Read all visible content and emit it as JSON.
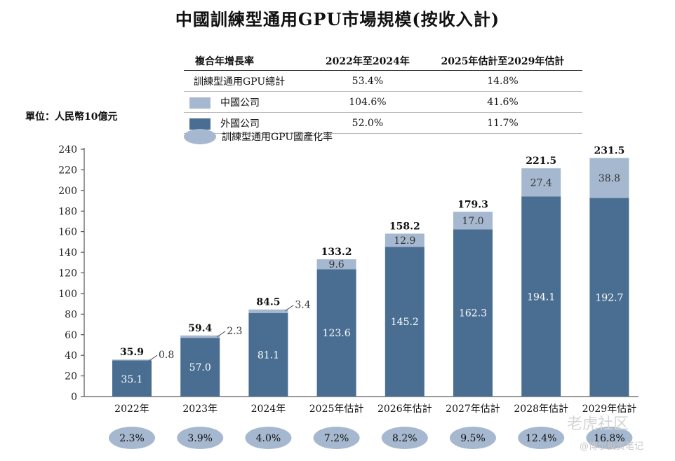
{
  "title": "中國訓練型通用GPU市場規模(按收入計)",
  "unit_label": "單位：人民幣10億元",
  "cagr_table": {
    "header": [
      "複合年增長率",
      "2022年至2024年",
      "2025年估計至2029年估計"
    ],
    "rows": [
      {
        "label": "訓練型通用GPU總計",
        "v1": "53.4%",
        "v2": "14.8%"
      },
      {
        "label": "中國公司",
        "v1": "104.6%",
        "v2": "41.6%"
      },
      {
        "label": "外國公司",
        "v1": "52.0%",
        "v2": "11.7%"
      }
    ]
  },
  "penetration_legend": "訓練型通用GPU國產化率",
  "colors": {
    "domestic": "#a6b8cf",
    "foreign": "#4a6e92",
    "ellipse": "#a6b8cf"
  },
  "watermark": {
    "line1": "老虎社区",
    "line2": "@博尔投资笔记"
  },
  "chart_data": {
    "type": "bar",
    "stacked": true,
    "categories": [
      "2022年",
      "2023年",
      "2024年",
      "2025年估計",
      "2026年估計",
      "2027年估計",
      "2028年估計",
      "2029年估計"
    ],
    "series": [
      {
        "name": "外國公司",
        "values": [
          35.1,
          57.0,
          81.1,
          123.6,
          145.2,
          162.3,
          194.1,
          192.7
        ]
      },
      {
        "name": "中國公司",
        "values": [
          0.8,
          2.3,
          3.4,
          9.6,
          12.9,
          17.0,
          27.4,
          38.8
        ]
      }
    ],
    "totals": [
      "35.9",
      "59.4",
      "84.5",
      "133.2",
      "158.2",
      "179.3",
      "221.5",
      "231.5"
    ],
    "foreign_labels": [
      "35.1",
      "57.0",
      "81.1",
      "123.6",
      "145.2",
      "162.3",
      "194.1",
      "192.7"
    ],
    "domestic_labels": [
      "0.8",
      "2.3",
      "3.4",
      "9.6",
      "12.9",
      "17.0",
      "27.4",
      "38.8"
    ],
    "penetration_rates": [
      "2.3%",
      "3.9%",
      "4.0%",
      "7.2%",
      "8.2%",
      "9.5%",
      "12.4%",
      "16.8%"
    ],
    "yticks": [
      "0",
      "20",
      "40",
      "60",
      "80",
      "100",
      "120",
      "140",
      "160",
      "180",
      "200",
      "220",
      "240"
    ],
    "ylim": [
      0,
      240
    ]
  }
}
